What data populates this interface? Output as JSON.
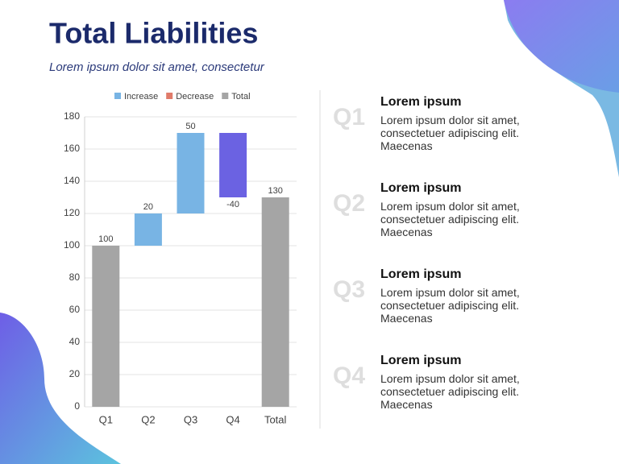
{
  "header": {
    "title": "Total Liabilities",
    "subtitle": "Lorem ipsum dolor sit amet, consectetur"
  },
  "chart_data": {
    "type": "waterfall",
    "categories": [
      "Q1",
      "Q2",
      "Q3",
      "Q4",
      "Total"
    ],
    "values": [
      100,
      20,
      50,
      -40,
      130
    ],
    "kinds": [
      "total",
      "increase",
      "increase",
      "decrease",
      "total"
    ],
    "colors": [
      "#a5a5a5",
      "#78b4e4",
      "#78b4e4",
      "#6b62e2",
      "#a5a5a5"
    ],
    "series": [
      {
        "name": "Increase",
        "color": "#78b4e4"
      },
      {
        "name": "Decrease",
        "color": "#e07b6a"
      },
      {
        "name": "Total",
        "color": "#a5a5a5"
      }
    ],
    "ylim": [
      0,
      180
    ],
    "yticks": [
      0,
      20,
      40,
      60,
      80,
      100,
      120,
      140,
      160,
      180
    ],
    "grid": true,
    "legend": "top"
  },
  "items": [
    {
      "label": "Q1",
      "heading": "Lorem ipsum",
      "body": "Lorem ipsum dolor sit amet, consectetuer adipiscing elit. Maecenas"
    },
    {
      "label": "Q2",
      "heading": "Lorem ipsum",
      "body": "Lorem ipsum dolor sit amet, consectetuer adipiscing elit. Maecenas"
    },
    {
      "label": "Q3",
      "heading": "Lorem ipsum",
      "body": "Lorem ipsum dolor sit amet, consectetuer adipiscing elit. Maecenas"
    },
    {
      "label": "Q4",
      "heading": "Lorem ipsum",
      "body": "Lorem ipsum dolor sit amet, consectetuer adipiscing elit. Maecenas"
    }
  ]
}
